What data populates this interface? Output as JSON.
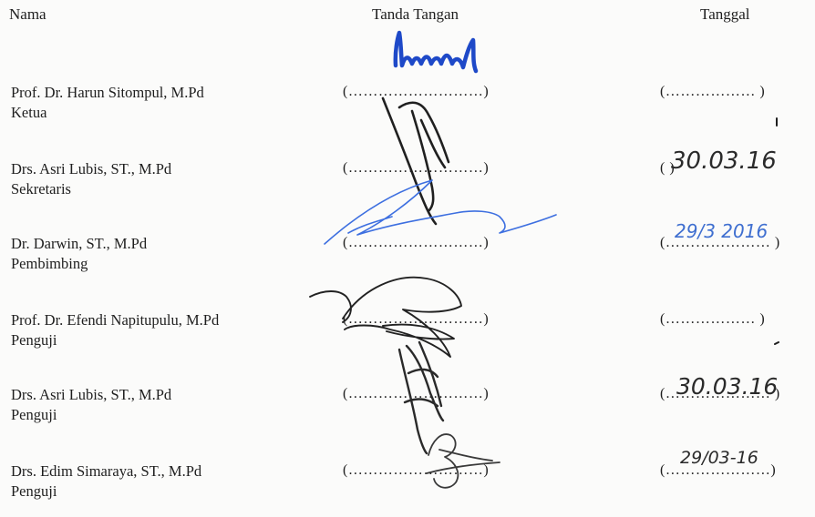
{
  "header": {
    "nama": "Nama",
    "tanda_tangan": "Tanda Tangan",
    "tanggal": "Tanggal"
  },
  "rows": [
    {
      "name": "Prof. Dr. Harun Sitompul, M.Pd",
      "role": "Ketua",
      "sig": "(………………………)",
      "date": "(……………… )",
      "date_ink": ""
    },
    {
      "name": "Drs. Asri Lubis, ST., M.Pd",
      "role": "Sekretaris",
      "sig": "(………………………)",
      "date": "(                        )",
      "date_ink": "30.03.16"
    },
    {
      "name": "Dr. Darwin, ST., M.Pd",
      "role": "Pembimbing",
      "sig": "(………………………)",
      "date": "(………………… )",
      "date_ink": "29/3 2016"
    },
    {
      "name": "Prof. Dr. Efendi Napitupulu, M.Pd",
      "role": "Penguji",
      "sig": "(………………………)",
      "date": "(……………… )",
      "date_ink": ""
    },
    {
      "name": "Drs. Asri Lubis, ST., M.Pd",
      "role": "Penguji",
      "sig": "(………………………)",
      "date": "(………………… )",
      "date_ink": "30.03.16"
    },
    {
      "name": "Drs. Edim Simaraya, ST., M.Pd",
      "role": "Penguji",
      "sig": "(………………………)",
      "date": "(…………………)",
      "date_ink": "29/03-16"
    }
  ]
}
